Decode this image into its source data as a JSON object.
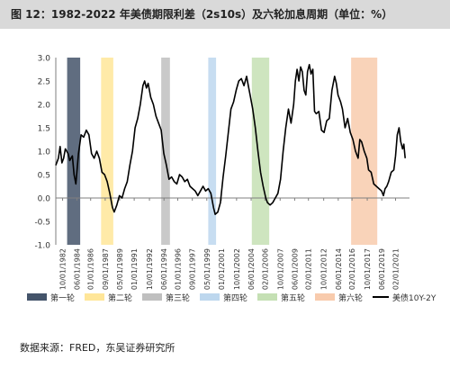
{
  "title": "图 12：1982-2022 年美债期限利差（2s10s）及六轮加息周期（单位：%）",
  "source": "数据来源：FRED，东吴证券研究所",
  "chart_data": {
    "type": "line",
    "ylim": [
      -1.0,
      3.0
    ],
    "y_ticks": [
      -1.0,
      -0.5,
      0.0,
      0.5,
      1.0,
      1.5,
      2.0,
      2.5,
      3.0
    ],
    "x_range": [
      1982.0,
      2022.6
    ],
    "x_ticks": [
      {
        "x": 1982.78,
        "label": "10/01/1982"
      },
      {
        "x": 1984.42,
        "label": "06/01/1984"
      },
      {
        "x": 1986.0,
        "label": "01/01/1986"
      },
      {
        "x": 1987.67,
        "label": "09/01/1987"
      },
      {
        "x": 1989.33,
        "label": "05/01/1989"
      },
      {
        "x": 1991.0,
        "label": "01/01/1991"
      },
      {
        "x": 1992.75,
        "label": "10/01/1992"
      },
      {
        "x": 1994.42,
        "label": "06/01/1994"
      },
      {
        "x": 1996.0,
        "label": "01/01/1996"
      },
      {
        "x": 1997.67,
        "label": "09/01/1997"
      },
      {
        "x": 1999.33,
        "label": "05/01/1999"
      },
      {
        "x": 2001.0,
        "label": "01/01/2001"
      },
      {
        "x": 2002.75,
        "label": "10/01/2002"
      },
      {
        "x": 2004.42,
        "label": "06/01/2004"
      },
      {
        "x": 2006.0,
        "label": "02/01/2006"
      },
      {
        "x": 2007.75,
        "label": "10/01/2007"
      },
      {
        "x": 2009.42,
        "label": "06/01/2009"
      },
      {
        "x": 2011.0,
        "label": "02/01/2011"
      },
      {
        "x": 2012.75,
        "label": "10/01/2012"
      },
      {
        "x": 2014.42,
        "label": "06/01/2014"
      },
      {
        "x": 2016.0,
        "label": "02/01/2016"
      },
      {
        "x": 2017.75,
        "label": "10/01/2017"
      },
      {
        "x": 2019.42,
        "label": "06/01/2019"
      },
      {
        "x": 2021.0,
        "label": "02/01/2021"
      }
    ],
    "cycles": [
      {
        "name": "第一轮",
        "color": "#44546a",
        "start": 1983.3,
        "end": 1984.8
      },
      {
        "name": "第二轮",
        "color": "#ffe699",
        "start": 1987.2,
        "end": 1988.6
      },
      {
        "name": "第三轮",
        "color": "#bfbfbf",
        "start": 1994.1,
        "end": 1995.1
      },
      {
        "name": "第四轮",
        "color": "#bdd7ee",
        "start": 1999.5,
        "end": 2000.4
      },
      {
        "name": "第五轮",
        "color": "#c5e0b4",
        "start": 2004.5,
        "end": 2006.5
      },
      {
        "name": "第六轮",
        "color": "#f8cbad",
        "start": 2015.9,
        "end": 2018.9
      }
    ],
    "series": [
      {
        "name": "美债10Y-2Y",
        "color": "#000000",
        "points": [
          [
            1982.0,
            0.7
          ],
          [
            1982.3,
            0.85
          ],
          [
            1982.5,
            1.1
          ],
          [
            1982.7,
            0.75
          ],
          [
            1982.9,
            0.85
          ],
          [
            1983.1,
            1.05
          ],
          [
            1983.4,
            0.95
          ],
          [
            1983.6,
            0.8
          ],
          [
            1983.9,
            0.9
          ],
          [
            1984.1,
            0.5
          ],
          [
            1984.3,
            0.3
          ],
          [
            1984.6,
            0.95
          ],
          [
            1984.9,
            1.35
          ],
          [
            1985.2,
            1.3
          ],
          [
            1985.5,
            1.45
          ],
          [
            1985.8,
            1.35
          ],
          [
            1986.1,
            0.95
          ],
          [
            1986.4,
            0.85
          ],
          [
            1986.7,
            1.0
          ],
          [
            1987.0,
            0.85
          ],
          [
            1987.3,
            0.55
          ],
          [
            1987.6,
            0.5
          ],
          [
            1987.9,
            0.35
          ],
          [
            1988.2,
            0.1
          ],
          [
            1988.5,
            -0.2
          ],
          [
            1988.7,
            -0.3
          ],
          [
            1989.0,
            -0.15
          ],
          [
            1989.3,
            0.05
          ],
          [
            1989.6,
            0.0
          ],
          [
            1989.9,
            0.2
          ],
          [
            1990.2,
            0.35
          ],
          [
            1990.5,
            0.7
          ],
          [
            1990.8,
            1.0
          ],
          [
            1991.1,
            1.5
          ],
          [
            1991.4,
            1.7
          ],
          [
            1991.7,
            2.0
          ],
          [
            1992.0,
            2.4
          ],
          [
            1992.2,
            2.5
          ],
          [
            1992.4,
            2.35
          ],
          [
            1992.6,
            2.45
          ],
          [
            1992.9,
            2.15
          ],
          [
            1993.2,
            2.0
          ],
          [
            1993.5,
            1.75
          ],
          [
            1993.8,
            1.6
          ],
          [
            1994.1,
            1.45
          ],
          [
            1994.4,
            0.95
          ],
          [
            1994.7,
            0.7
          ],
          [
            1995.0,
            0.4
          ],
          [
            1995.3,
            0.45
          ],
          [
            1995.6,
            0.35
          ],
          [
            1995.9,
            0.3
          ],
          [
            1996.2,
            0.5
          ],
          [
            1996.5,
            0.45
          ],
          [
            1996.8,
            0.35
          ],
          [
            1997.1,
            0.4
          ],
          [
            1997.4,
            0.25
          ],
          [
            1997.7,
            0.2
          ],
          [
            1998.0,
            0.15
          ],
          [
            1998.3,
            0.05
          ],
          [
            1998.6,
            0.15
          ],
          [
            1998.9,
            0.25
          ],
          [
            1999.2,
            0.15
          ],
          [
            1999.5,
            0.2
          ],
          [
            1999.8,
            0.1
          ],
          [
            2000.1,
            -0.2
          ],
          [
            2000.3,
            -0.35
          ],
          [
            2000.6,
            -0.3
          ],
          [
            2000.9,
            -0.1
          ],
          [
            2001.2,
            0.45
          ],
          [
            2001.5,
            0.9
          ],
          [
            2001.8,
            1.4
          ],
          [
            2002.1,
            1.9
          ],
          [
            2002.4,
            2.05
          ],
          [
            2002.7,
            2.3
          ],
          [
            2003.0,
            2.5
          ],
          [
            2003.3,
            2.55
          ],
          [
            2003.6,
            2.4
          ],
          [
            2003.9,
            2.6
          ],
          [
            2004.1,
            2.4
          ],
          [
            2004.3,
            2.2
          ],
          [
            2004.6,
            1.9
          ],
          [
            2004.9,
            1.5
          ],
          [
            2005.2,
            1.0
          ],
          [
            2005.5,
            0.55
          ],
          [
            2005.8,
            0.25
          ],
          [
            2006.1,
            0.0
          ],
          [
            2006.3,
            -0.1
          ],
          [
            2006.6,
            -0.15
          ],
          [
            2006.9,
            -0.1
          ],
          [
            2007.2,
            0.0
          ],
          [
            2007.5,
            0.1
          ],
          [
            2007.8,
            0.4
          ],
          [
            2008.1,
            1.0
          ],
          [
            2008.4,
            1.5
          ],
          [
            2008.7,
            1.9
          ],
          [
            2009.0,
            1.6
          ],
          [
            2009.3,
            2.0
          ],
          [
            2009.5,
            2.5
          ],
          [
            2009.7,
            2.75
          ],
          [
            2009.9,
            2.5
          ],
          [
            2010.1,
            2.8
          ],
          [
            2010.3,
            2.7
          ],
          [
            2010.5,
            2.3
          ],
          [
            2010.7,
            2.2
          ],
          [
            2010.9,
            2.7
          ],
          [
            2011.1,
            2.85
          ],
          [
            2011.3,
            2.65
          ],
          [
            2011.5,
            2.75
          ],
          [
            2011.7,
            1.85
          ],
          [
            2011.9,
            1.8
          ],
          [
            2012.2,
            1.85
          ],
          [
            2012.5,
            1.45
          ],
          [
            2012.8,
            1.4
          ],
          [
            2013.1,
            1.65
          ],
          [
            2013.4,
            1.7
          ],
          [
            2013.7,
            2.3
          ],
          [
            2014.0,
            2.6
          ],
          [
            2014.2,
            2.45
          ],
          [
            2014.4,
            2.2
          ],
          [
            2014.7,
            2.05
          ],
          [
            2014.9,
            1.9
          ],
          [
            2015.2,
            1.5
          ],
          [
            2015.5,
            1.7
          ],
          [
            2015.8,
            1.4
          ],
          [
            2016.1,
            1.25
          ],
          [
            2016.4,
            1.0
          ],
          [
            2016.7,
            0.85
          ],
          [
            2016.9,
            1.25
          ],
          [
            2017.1,
            1.2
          ],
          [
            2017.4,
            1.0
          ],
          [
            2017.7,
            0.85
          ],
          [
            2017.9,
            0.6
          ],
          [
            2018.2,
            0.55
          ],
          [
            2018.5,
            0.3
          ],
          [
            2018.8,
            0.25
          ],
          [
            2019.1,
            0.2
          ],
          [
            2019.4,
            0.15
          ],
          [
            2019.6,
            0.05
          ],
          [
            2019.8,
            0.2
          ],
          [
            2020.0,
            0.25
          ],
          [
            2020.2,
            0.35
          ],
          [
            2020.5,
            0.55
          ],
          [
            2020.8,
            0.6
          ],
          [
            2021.0,
            0.9
          ],
          [
            2021.2,
            1.35
          ],
          [
            2021.4,
            1.5
          ],
          [
            2021.6,
            1.2
          ],
          [
            2021.8,
            1.05
          ],
          [
            2021.95,
            1.15
          ],
          [
            2022.1,
            0.85
          ]
        ]
      }
    ]
  }
}
